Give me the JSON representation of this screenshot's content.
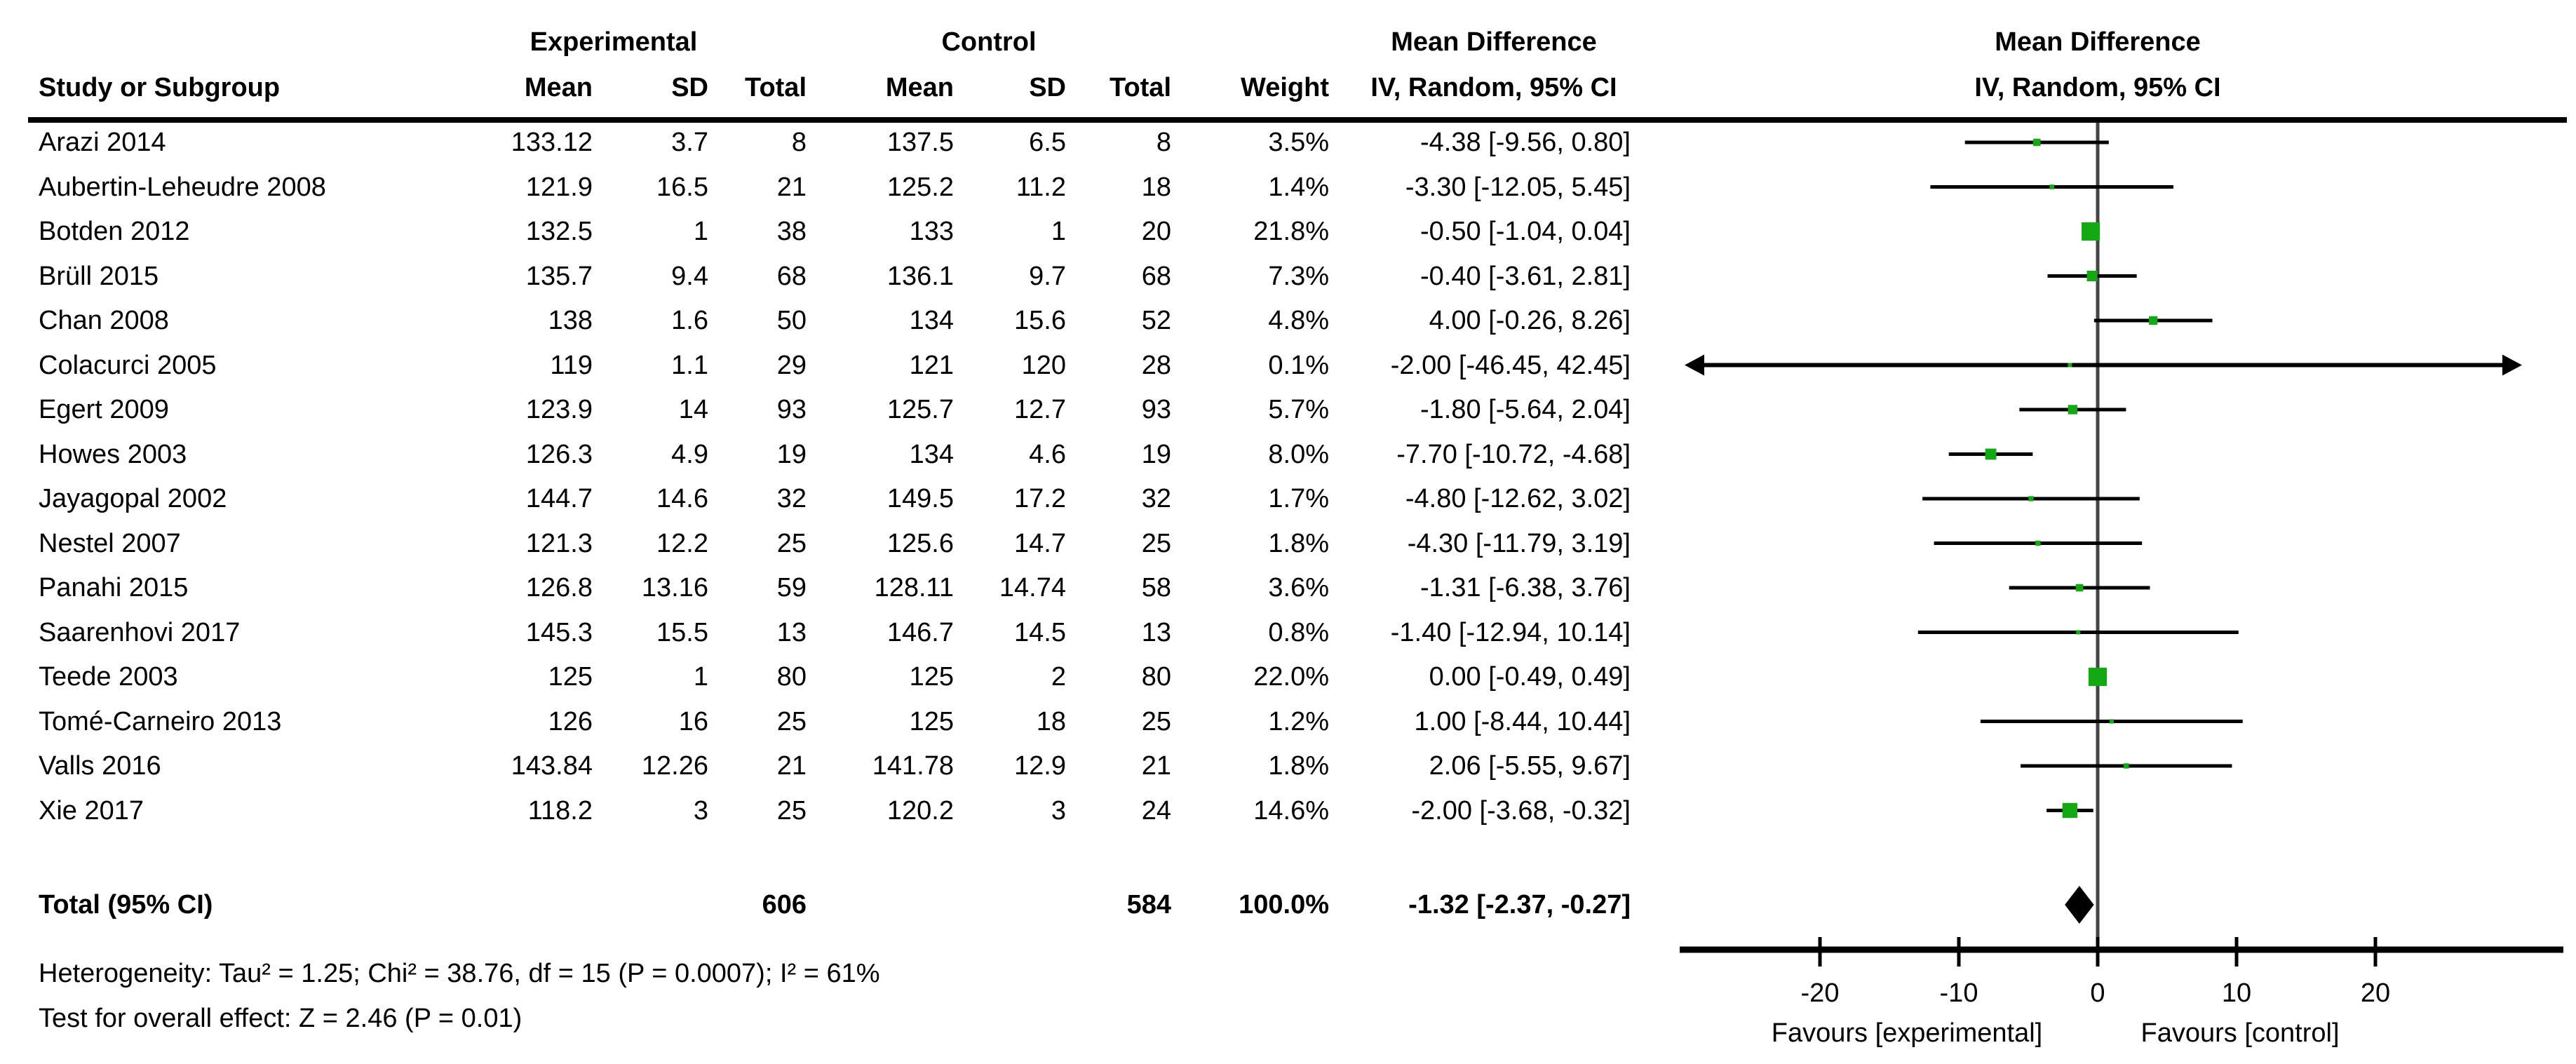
{
  "header": {
    "study_col": "Study or Subgroup",
    "experimental": "Experimental",
    "control": "Control",
    "md_title": "Mean Difference",
    "md_subtitle": "IV, Random, 95% CI",
    "cols": {
      "mean": "Mean",
      "sd": "SD",
      "total": "Total",
      "weight": "Weight"
    }
  },
  "footer": {
    "heterogeneity": "Heterogeneity: Tau² = 1.25; Chi² = 38.76, df = 15 (P = 0.0007); I² = 61%",
    "overall_effect": "Test for overall effect: Z = 2.46 (P = 0.01)"
  },
  "colors": {
    "marker_green": "#14a814",
    "line_black": "#000000",
    "zero_line_gray": "#444444"
  },
  "chart_data": {
    "type": "scatter",
    "plot_kind": "forest",
    "effect_measure": "Mean Difference, IV, Random, 95% CI",
    "axis": {
      "ticks": [
        -20,
        -10,
        0,
        10,
        20
      ],
      "xlim": [
        -30,
        33
      ],
      "favours_left": "Favours [experimental]",
      "favours_right": "Favours [control]"
    },
    "studies": [
      {
        "name": "Arazi 2014",
        "mean1": "133.12",
        "sd1": "3.7",
        "n1": "8",
        "mean2": "137.5",
        "sd2": "6.5",
        "n2": "8",
        "weight": "3.5%",
        "weight_pct": 3.5,
        "ci": "-4.38 [-9.56, 0.80]",
        "md": -4.38,
        "lo": -9.56,
        "hi": 0.8,
        "clip": false
      },
      {
        "name": "Aubertin-Leheudre 2008",
        "mean1": "121.9",
        "sd1": "16.5",
        "n1": "21",
        "mean2": "125.2",
        "sd2": "11.2",
        "n2": "18",
        "weight": "1.4%",
        "weight_pct": 1.4,
        "ci": "-3.30 [-12.05, 5.45]",
        "md": -3.3,
        "lo": -12.05,
        "hi": 5.45,
        "clip": false
      },
      {
        "name": "Botden 2012",
        "mean1": "132.5",
        "sd1": "1",
        "n1": "38",
        "mean2": "133",
        "sd2": "1",
        "n2": "20",
        "weight": "21.8%",
        "weight_pct": 21.8,
        "ci": "-0.50 [-1.04, 0.04]",
        "md": -0.5,
        "lo": -1.04,
        "hi": 0.04,
        "clip": false
      },
      {
        "name": "Brüll 2015",
        "mean1": "135.7",
        "sd1": "9.4",
        "n1": "68",
        "mean2": "136.1",
        "sd2": "9.7",
        "n2": "68",
        "weight": "7.3%",
        "weight_pct": 7.3,
        "ci": "-0.40 [-3.61, 2.81]",
        "md": -0.4,
        "lo": -3.61,
        "hi": 2.81,
        "clip": false
      },
      {
        "name": "Chan 2008",
        "mean1": "138",
        "sd1": "1.6",
        "n1": "50",
        "mean2": "134",
        "sd2": "15.6",
        "n2": "52",
        "weight": "4.8%",
        "weight_pct": 4.8,
        "ci": "4.00 [-0.26, 8.26]",
        "md": 4.0,
        "lo": -0.26,
        "hi": 8.26,
        "clip": false
      },
      {
        "name": "Colacurci 2005",
        "mean1": "119",
        "sd1": "1.1",
        "n1": "29",
        "mean2": "121",
        "sd2": "120",
        "n2": "28",
        "weight": "0.1%",
        "weight_pct": 0.1,
        "ci": "-2.00 [-46.45, 42.45]",
        "md": -2.0,
        "lo": -46.45,
        "hi": 42.45,
        "clip": true
      },
      {
        "name": "Egert 2009",
        "mean1": "123.9",
        "sd1": "14",
        "n1": "93",
        "mean2": "125.7",
        "sd2": "12.7",
        "n2": "93",
        "weight": "5.7%",
        "weight_pct": 5.7,
        "ci": "-1.80 [-5.64, 2.04]",
        "md": -1.8,
        "lo": -5.64,
        "hi": 2.04,
        "clip": false
      },
      {
        "name": "Howes 2003",
        "mean1": "126.3",
        "sd1": "4.9",
        "n1": "19",
        "mean2": "134",
        "sd2": "4.6",
        "n2": "19",
        "weight": "8.0%",
        "weight_pct": 8.0,
        "ci": "-7.70 [-10.72, -4.68]",
        "md": -7.7,
        "lo": -10.72,
        "hi": -4.68,
        "clip": false
      },
      {
        "name": "Jayagopal 2002",
        "mean1": "144.7",
        "sd1": "14.6",
        "n1": "32",
        "mean2": "149.5",
        "sd2": "17.2",
        "n2": "32",
        "weight": "1.7%",
        "weight_pct": 1.7,
        "ci": "-4.80 [-12.62, 3.02]",
        "md": -4.8,
        "lo": -12.62,
        "hi": 3.02,
        "clip": false
      },
      {
        "name": "Nestel 2007",
        "mean1": "121.3",
        "sd1": "12.2",
        "n1": "25",
        "mean2": "125.6",
        "sd2": "14.7",
        "n2": "25",
        "weight": "1.8%",
        "weight_pct": 1.8,
        "ci": "-4.30 [-11.79, 3.19]",
        "md": -4.3,
        "lo": -11.79,
        "hi": 3.19,
        "clip": false
      },
      {
        "name": "Panahi 2015",
        "mean1": "126.8",
        "sd1": "13.16",
        "n1": "59",
        "mean2": "128.11",
        "sd2": "14.74",
        "n2": "58",
        "weight": "3.6%",
        "weight_pct": 3.6,
        "ci": "-1.31 [-6.38, 3.76]",
        "md": -1.31,
        "lo": -6.38,
        "hi": 3.76,
        "clip": false
      },
      {
        "name": "Saarenhovi 2017",
        "mean1": "145.3",
        "sd1": "15.5",
        "n1": "13",
        "mean2": "146.7",
        "sd2": "14.5",
        "n2": "13",
        "weight": "0.8%",
        "weight_pct": 0.8,
        "ci": "-1.40 [-12.94, 10.14]",
        "md": -1.4,
        "lo": -12.94,
        "hi": 10.14,
        "clip": false
      },
      {
        "name": "Teede 2003",
        "mean1": "125",
        "sd1": "1",
        "n1": "80",
        "mean2": "125",
        "sd2": "2",
        "n2": "80",
        "weight": "22.0%",
        "weight_pct": 22.0,
        "ci": "0.00 [-0.49, 0.49]",
        "md": 0.0,
        "lo": -0.49,
        "hi": 0.49,
        "clip": false
      },
      {
        "name": "Tomé-Carneiro 2013",
        "mean1": "126",
        "sd1": "16",
        "n1": "25",
        "mean2": "125",
        "sd2": "18",
        "n2": "25",
        "weight": "1.2%",
        "weight_pct": 1.2,
        "ci": "1.00 [-8.44, 10.44]",
        "md": 1.0,
        "lo": -8.44,
        "hi": 10.44,
        "clip": false
      },
      {
        "name": "Valls 2016",
        "mean1": "143.84",
        "sd1": "12.26",
        "n1": "21",
        "mean2": "141.78",
        "sd2": "12.9",
        "n2": "21",
        "weight": "1.8%",
        "weight_pct": 1.8,
        "ci": "2.06 [-5.55, 9.67]",
        "md": 2.06,
        "lo": -5.55,
        "hi": 9.67,
        "clip": false
      },
      {
        "name": "Xie 2017",
        "mean1": "118.2",
        "sd1": "3",
        "n1": "25",
        "mean2": "120.2",
        "sd2": "3",
        "n2": "24",
        "weight": "14.6%",
        "weight_pct": 14.6,
        "ci": "-2.00 [-3.68, -0.32]",
        "md": -2.0,
        "lo": -3.68,
        "hi": -0.32,
        "clip": false
      }
    ],
    "total": {
      "label": "Total (95% CI)",
      "n1": "606",
      "n2": "584",
      "weight": "100.0%",
      "ci": "-1.32 [-2.37, -0.27]",
      "md": -1.32,
      "lo": -2.37,
      "hi": -0.27
    }
  }
}
